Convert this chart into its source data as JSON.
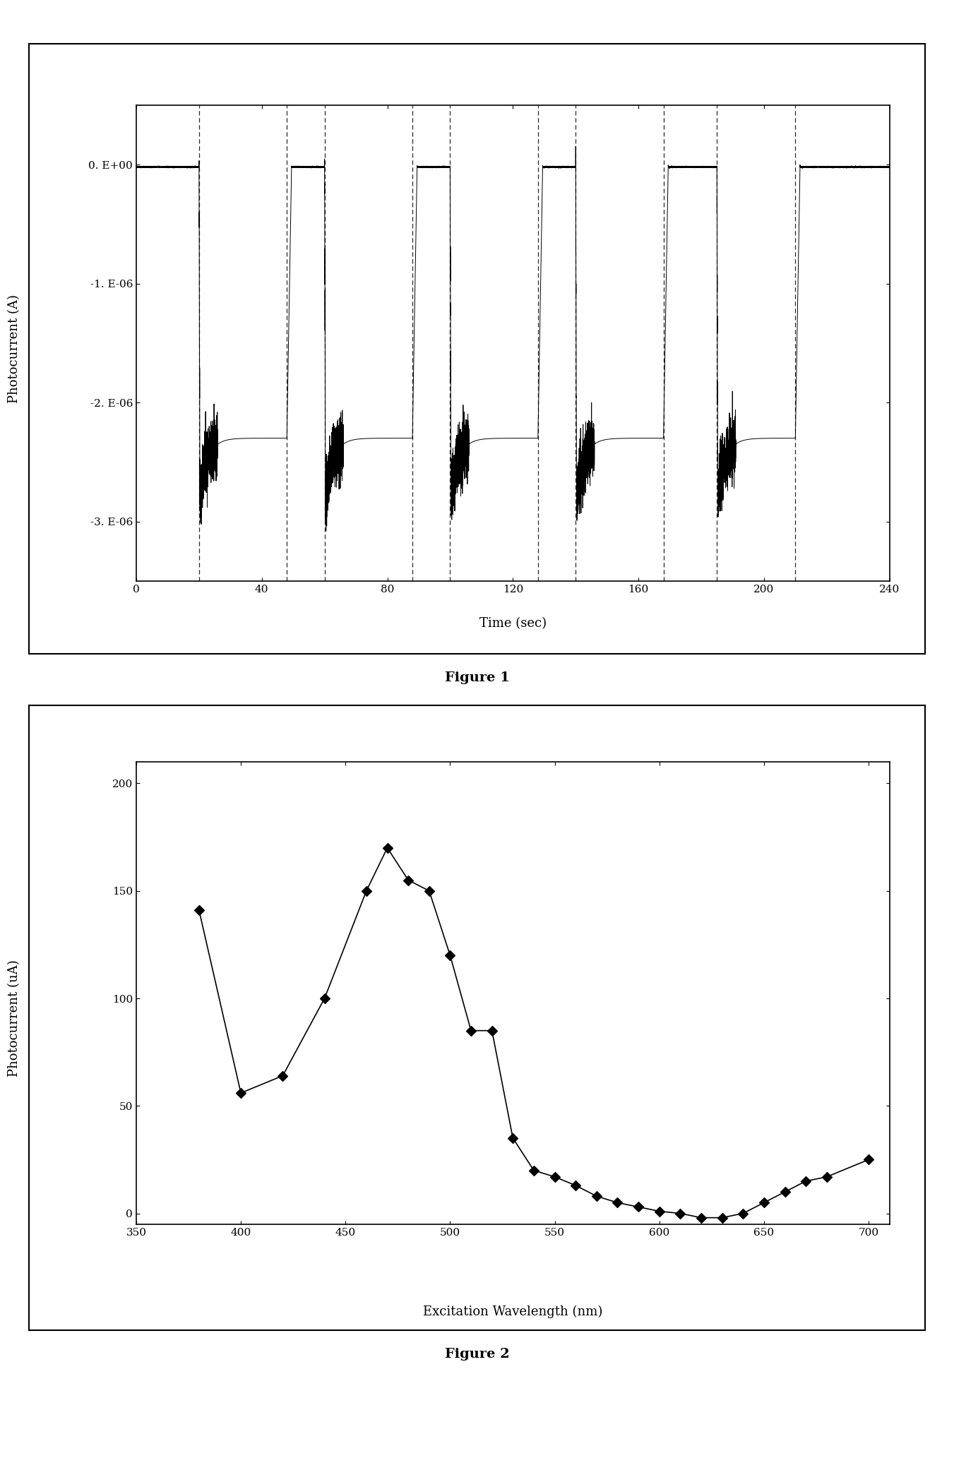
{
  "fig1": {
    "caption": "Figure 1",
    "xlabel": "Time (sec)",
    "ylabel": "Photocurrent (A)",
    "xlim": [
      0,
      240
    ],
    "ylim": [
      -3.5e-06,
      5e-07
    ],
    "xticks": [
      0,
      40,
      80,
      120,
      160,
      200,
      240
    ],
    "yticks": [
      0.0,
      -1e-06,
      -2e-06,
      -3e-06
    ],
    "ytick_labels": [
      "0. E+00",
      "-1. E-06",
      "-2. E-06",
      "-3. E-06"
    ],
    "pulse_on": [
      20,
      60,
      100,
      140,
      185
    ],
    "pulse_off": [
      48,
      88,
      128,
      168,
      210
    ],
    "spike_depth": -2.85e-06,
    "flat_level": -2.3e-06,
    "near_zero": -2e-08
  },
  "fig2": {
    "caption": "Figure 2",
    "xlabel": "Excitation Wavelength (nm)",
    "ylabel": "Photocurrent (uA)",
    "xlim": [
      350,
      710
    ],
    "ylim": [
      -5,
      210
    ],
    "xticks": [
      350,
      400,
      450,
      500,
      550,
      600,
      650,
      700
    ],
    "yticks": [
      0,
      50,
      100,
      150,
      200
    ],
    "data_x": [
      380,
      400,
      420,
      440,
      460,
      470,
      480,
      490,
      500,
      510,
      520,
      530,
      540,
      550,
      560,
      570,
      580,
      590,
      600,
      610,
      620,
      630,
      640,
      650,
      660,
      670,
      680,
      700
    ],
    "data_y": [
      141,
      56,
      64,
      100,
      150,
      170,
      155,
      150,
      120,
      85,
      85,
      35,
      20,
      17,
      13,
      8,
      5,
      3,
      1,
      0,
      -2,
      -2,
      0,
      5,
      10,
      15,
      17,
      25
    ]
  }
}
